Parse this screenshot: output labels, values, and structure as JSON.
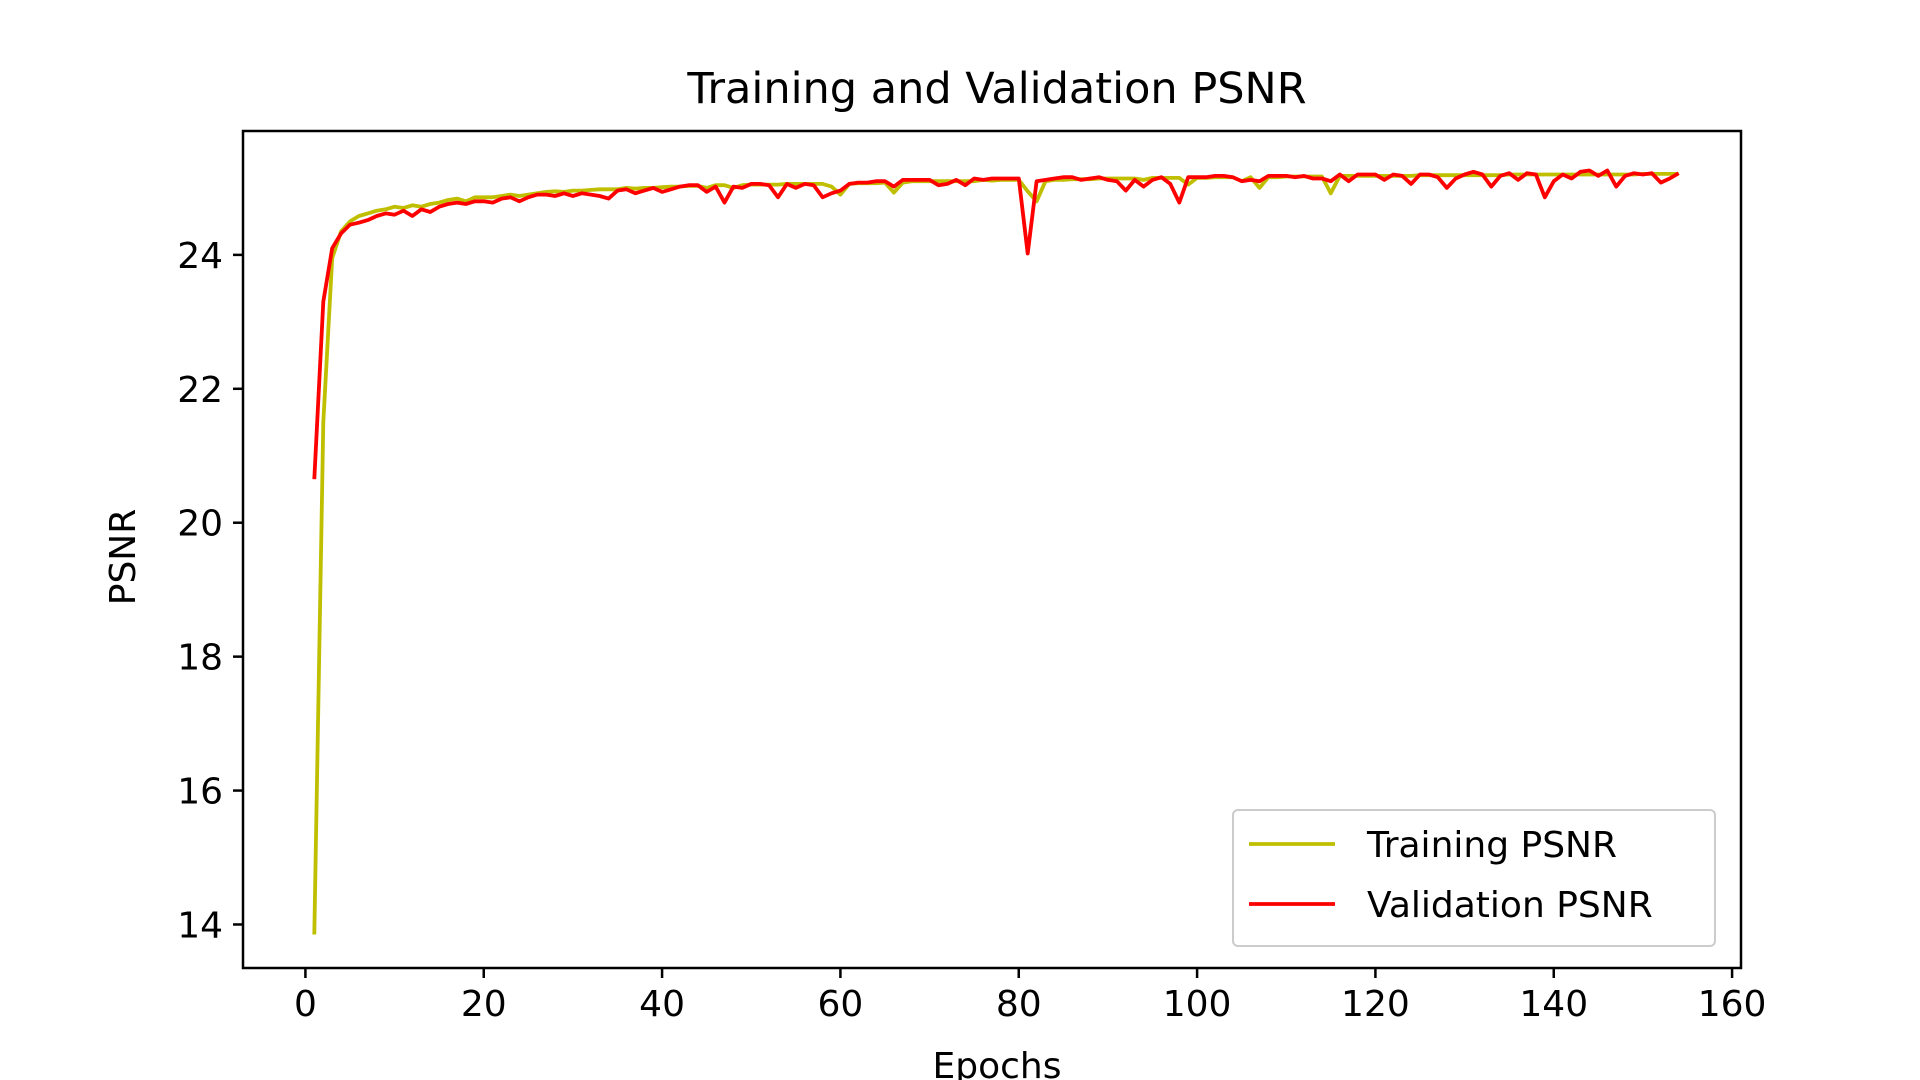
{
  "chart_data": {
    "type": "line",
    "title": "Training and Validation PSNR",
    "xlabel": "Epochs",
    "ylabel": "PSNR",
    "xlim": [
      -7,
      161
    ],
    "ylim": [
      13.35,
      25.85
    ],
    "xticks": [
      0,
      20,
      40,
      60,
      80,
      100,
      120,
      140,
      160
    ],
    "yticks": [
      14,
      16,
      18,
      20,
      22,
      24
    ],
    "grid": false,
    "legend_position": "lower right",
    "series": [
      {
        "name": "Training PSNR",
        "color": "#bfbf00",
        "x": [
          1,
          2,
          3,
          4,
          5,
          6,
          7,
          8,
          9,
          10,
          11,
          12,
          13,
          14,
          15,
          16,
          17,
          18,
          19,
          20,
          21,
          22,
          23,
          24,
          25,
          26,
          27,
          28,
          29,
          30,
          31,
          32,
          33,
          34,
          35,
          36,
          37,
          38,
          39,
          40,
          41,
          42,
          43,
          44,
          45,
          46,
          47,
          48,
          49,
          50,
          51,
          52,
          53,
          54,
          55,
          56,
          57,
          58,
          59,
          60,
          61,
          62,
          63,
          64,
          65,
          66,
          67,
          68,
          69,
          70,
          71,
          72,
          73,
          74,
          75,
          76,
          77,
          78,
          79,
          80,
          81,
          82,
          83,
          84,
          85,
          86,
          87,
          88,
          89,
          90,
          91,
          92,
          93,
          94,
          95,
          96,
          97,
          98,
          99,
          100,
          101,
          102,
          103,
          104,
          105,
          106,
          107,
          108,
          109,
          110,
          111,
          112,
          113,
          114,
          115,
          116,
          117,
          118,
          119,
          120,
          121,
          122,
          123,
          124,
          125,
          126,
          127,
          128,
          129,
          130,
          131,
          132,
          133,
          134,
          135,
          136,
          137,
          138,
          139,
          140,
          141,
          142,
          143,
          144,
          145,
          146,
          147,
          148,
          149,
          150,
          151,
          152,
          153,
          154
        ],
        "y": [
          13.85,
          21.5,
          23.95,
          24.35,
          24.5,
          24.58,
          24.62,
          24.66,
          24.68,
          24.72,
          24.7,
          24.74,
          24.72,
          24.76,
          24.78,
          24.82,
          24.84,
          24.8,
          24.86,
          24.86,
          24.86,
          24.88,
          24.9,
          24.88,
          24.9,
          24.92,
          24.94,
          24.95,
          24.94,
          24.96,
          24.96,
          24.97,
          24.98,
          24.98,
          24.98,
          25.0,
          24.99,
          25.0,
          25.0,
          25.01,
          25.02,
          25.02,
          25.03,
          25.03,
          25.0,
          25.04,
          25.04,
          25.0,
          25.04,
          25.05,
          25.05,
          25.05,
          25.05,
          25.06,
          25.06,
          25.06,
          25.06,
          25.06,
          25.02,
          24.9,
          25.06,
          25.07,
          25.07,
          25.07,
          25.08,
          24.93,
          25.08,
          25.1,
          25.1,
          25.1,
          25.1,
          25.1,
          25.1,
          25.1,
          25.1,
          25.12,
          25.11,
          25.12,
          25.12,
          25.12,
          24.95,
          24.8,
          25.1,
          25.12,
          25.12,
          25.13,
          25.13,
          25.13,
          25.14,
          25.14,
          25.14,
          25.14,
          25.14,
          25.12,
          25.15,
          25.15,
          25.15,
          25.15,
          25.05,
          25.15,
          25.15,
          25.16,
          25.16,
          25.16,
          25.1,
          25.16,
          25.0,
          25.16,
          25.16,
          25.17,
          25.17,
          25.17,
          25.17,
          25.17,
          24.92,
          25.18,
          25.18,
          25.18,
          25.18,
          25.18,
          25.18,
          25.18,
          25.18,
          25.18,
          25.19,
          25.19,
          25.19,
          25.19,
          25.19,
          25.19,
          25.19,
          25.19,
          25.19,
          25.19,
          25.2,
          25.2,
          25.2,
          25.2,
          25.2,
          25.2,
          25.2,
          25.2,
          25.2,
          25.2,
          25.2,
          25.2,
          25.2,
          25.2,
          25.2,
          25.21,
          25.21,
          25.21,
          25.21,
          25.21
        ]
      },
      {
        "name": "Validation PSNR",
        "color": "#ff0000",
        "x": [
          1,
          2,
          3,
          4,
          5,
          6,
          7,
          8,
          9,
          10,
          11,
          12,
          13,
          14,
          15,
          16,
          17,
          18,
          19,
          20,
          21,
          22,
          23,
          24,
          25,
          26,
          27,
          28,
          29,
          30,
          31,
          32,
          33,
          34,
          35,
          36,
          37,
          38,
          39,
          40,
          41,
          42,
          43,
          44,
          45,
          46,
          47,
          48,
          49,
          50,
          51,
          52,
          53,
          54,
          55,
          56,
          57,
          58,
          59,
          60,
          61,
          62,
          63,
          64,
          65,
          66,
          67,
          68,
          69,
          70,
          71,
          72,
          73,
          74,
          75,
          76,
          77,
          78,
          79,
          80,
          81,
          82,
          83,
          84,
          85,
          86,
          87,
          88,
          89,
          90,
          91,
          92,
          93,
          94,
          95,
          96,
          97,
          98,
          99,
          100,
          101,
          102,
          103,
          104,
          105,
          106,
          107,
          108,
          109,
          110,
          111,
          112,
          113,
          114,
          115,
          116,
          117,
          118,
          119,
          120,
          121,
          122,
          123,
          124,
          125,
          126,
          127,
          128,
          129,
          130,
          131,
          132,
          133,
          134,
          135,
          136,
          137,
          138,
          139,
          140,
          141,
          142,
          143,
          144,
          145,
          146,
          147,
          148,
          149,
          150,
          151,
          152,
          153,
          154
        ],
        "y": [
          20.65,
          23.3,
          24.1,
          24.32,
          24.45,
          24.48,
          24.52,
          24.58,
          24.62,
          24.6,
          24.66,
          24.58,
          24.68,
          24.64,
          24.72,
          24.76,
          24.78,
          24.76,
          24.8,
          24.8,
          24.78,
          24.84,
          24.86,
          24.8,
          24.86,
          24.9,
          24.9,
          24.88,
          24.92,
          24.88,
          24.92,
          24.9,
          24.88,
          24.84,
          24.96,
          24.98,
          24.92,
          24.96,
          25.0,
          24.94,
          24.98,
          25.02,
          25.04,
          25.04,
          24.94,
          25.02,
          24.78,
          25.02,
          25.0,
          25.06,
          25.06,
          25.04,
          24.86,
          25.06,
          25.0,
          25.06,
          25.04,
          24.86,
          24.92,
          24.96,
          25.06,
          25.08,
          25.08,
          25.1,
          25.1,
          25.02,
          25.12,
          25.12,
          25.12,
          25.12,
          25.04,
          25.06,
          25.12,
          25.04,
          25.14,
          25.12,
          25.14,
          25.14,
          25.14,
          25.14,
          24.02,
          25.1,
          25.12,
          25.14,
          25.16,
          25.16,
          25.12,
          25.14,
          25.16,
          25.12,
          25.1,
          24.96,
          25.12,
          25.02,
          25.12,
          25.16,
          25.06,
          24.78,
          25.16,
          25.16,
          25.16,
          25.18,
          25.18,
          25.16,
          25.1,
          25.12,
          25.1,
          25.18,
          25.18,
          25.18,
          25.16,
          25.18,
          25.14,
          25.14,
          25.1,
          25.2,
          25.1,
          25.2,
          25.2,
          25.2,
          25.12,
          25.2,
          25.18,
          25.06,
          25.2,
          25.2,
          25.16,
          25.0,
          25.14,
          25.2,
          25.24,
          25.2,
          25.02,
          25.18,
          25.22,
          25.12,
          25.22,
          25.2,
          24.86,
          25.1,
          25.2,
          25.14,
          25.24,
          25.26,
          25.18,
          25.26,
          25.02,
          25.18,
          25.22,
          25.2,
          25.22,
          25.08,
          25.14,
          25.22
        ]
      }
    ]
  }
}
